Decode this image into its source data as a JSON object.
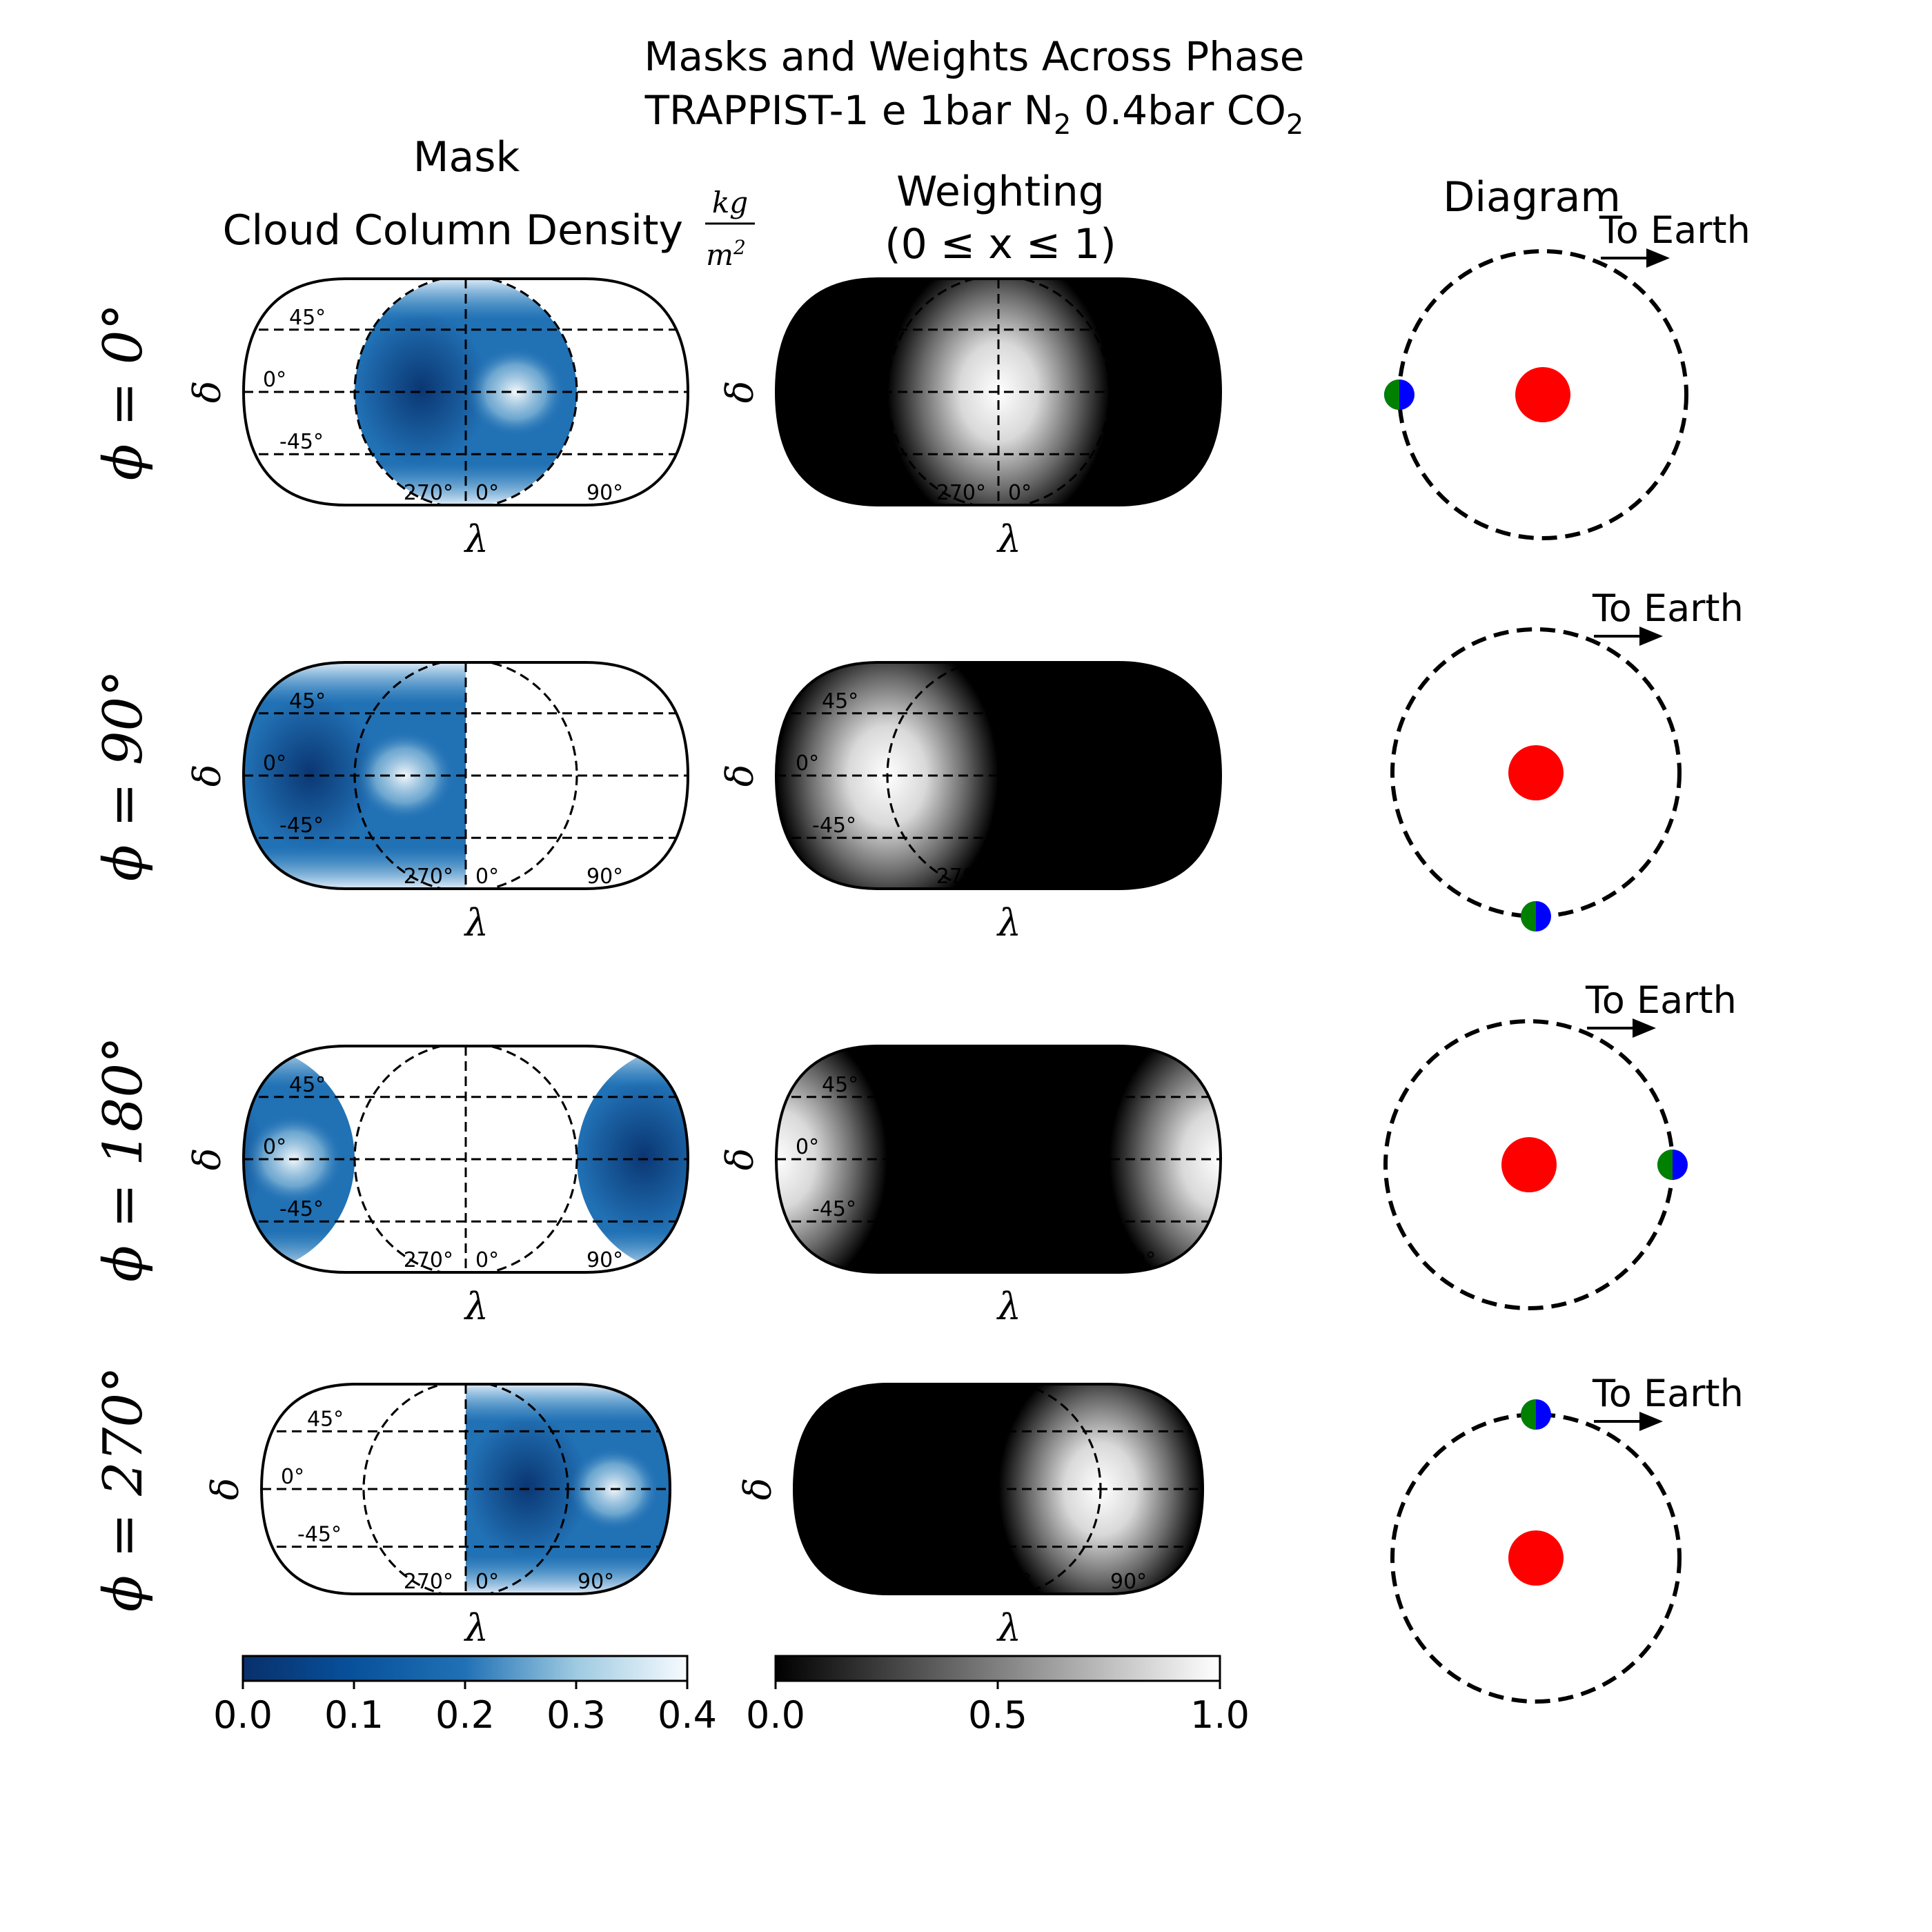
{
  "title_line1": "Masks and Weights Across Phase",
  "title_line2_parts": {
    "a": "TRAPPIST-1 e 1bar N",
    "sub1": "2",
    "b": " 0.4bar CO",
    "sub2": "2"
  },
  "columns": {
    "mask_header": "Mask",
    "mask_subheader": "Cloud Column Density",
    "mask_unit_num": "kg",
    "mask_unit_den": "m",
    "mask_unit_den_sup": "2",
    "weight_header": "Weighting",
    "weight_subheader": "(0 ≤ x ≤ 1)",
    "diagram_header": "Diagram"
  },
  "axis_labels": {
    "x": "λ",
    "y": "δ"
  },
  "to_earth_label": "To Earth",
  "colors": {
    "mask_dark": "#08306b",
    "mask_mid": "#2171b5",
    "mask_light": "#c6dbef",
    "mask_white": "#f7fbff",
    "star": "#ff0000",
    "planet_day": "#0000ff",
    "planet_night": "#008000"
  },
  "chart_data": {
    "type": "heatmap",
    "rows": [
      {
        "label": "ϕ = 0°",
        "phase_deg": 0
      },
      {
        "label": "ϕ = 90°",
        "phase_deg": 90
      },
      {
        "label": "ϕ = 180°",
        "phase_deg": 180
      },
      {
        "label": "ϕ = 270°",
        "phase_deg": 270
      }
    ],
    "lat_ticks": [
      "45°",
      "0°",
      "-45°"
    ],
    "lon_ticks": [
      "270°",
      "0°",
      "90°"
    ],
    "mask_colorbar": {
      "min": 0.0,
      "max": 0.4,
      "ticks": [
        "0.0",
        "0.1",
        "0.2",
        "0.3",
        "0.4"
      ],
      "colormap": "Blues_r"
    },
    "weight_colorbar": {
      "min": 0.0,
      "max": 1.0,
      "ticks": [
        "0.0",
        "0.5",
        "1.0"
      ],
      "colormap": "gray"
    }
  }
}
